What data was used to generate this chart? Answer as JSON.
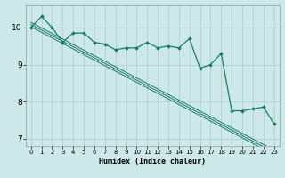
{
  "title": "",
  "xlabel": "Humidex (Indice chaleur)",
  "bg_color": "#cce8e8",
  "grid_color": "#aacccc",
  "line_color": "#1a7a6e",
  "x_data": [
    0,
    1,
    2,
    3,
    4,
    5,
    6,
    7,
    8,
    9,
    10,
    11,
    12,
    13,
    14,
    15,
    16,
    17,
    18,
    19,
    20,
    21,
    22,
    23
  ],
  "y_main": [
    10.0,
    10.3,
    10.0,
    9.6,
    9.85,
    9.85,
    9.6,
    9.55,
    9.4,
    9.45,
    9.45,
    9.6,
    9.45,
    9.5,
    9.45,
    9.7,
    8.9,
    9.0,
    9.3,
    7.75,
    7.75,
    7.8,
    7.85,
    7.4
  ],
  "y_trend1": [
    10.02,
    9.87,
    9.72,
    9.57,
    9.42,
    9.27,
    9.12,
    8.97,
    8.82,
    8.67,
    8.52,
    8.37,
    8.22,
    8.07,
    7.92,
    7.77,
    7.62,
    7.47,
    7.32,
    7.17,
    7.02,
    6.87,
    6.72,
    6.57
  ],
  "y_trend2": [
    10.08,
    9.93,
    9.78,
    9.63,
    9.48,
    9.33,
    9.18,
    9.03,
    8.88,
    8.73,
    8.58,
    8.43,
    8.28,
    8.13,
    7.98,
    7.83,
    7.68,
    7.53,
    7.38,
    7.23,
    7.08,
    6.93,
    6.78,
    6.63
  ],
  "y_trend3": [
    10.14,
    9.99,
    9.84,
    9.69,
    9.54,
    9.39,
    9.24,
    9.09,
    8.94,
    8.79,
    8.64,
    8.49,
    8.34,
    8.19,
    8.04,
    7.89,
    7.74,
    7.59,
    7.44,
    7.29,
    7.14,
    6.99,
    6.84,
    6.69
  ],
  "ylim": [
    6.8,
    10.6
  ],
  "xlim": [
    -0.5,
    23.5
  ],
  "yticks": [
    7,
    8,
    9,
    10
  ],
  "xticks": [
    0,
    1,
    2,
    3,
    4,
    5,
    6,
    7,
    8,
    9,
    10,
    11,
    12,
    13,
    14,
    15,
    16,
    17,
    18,
    19,
    20,
    21,
    22,
    23
  ],
  "xlabel_fontsize": 6.0,
  "ytick_fontsize": 6.5,
  "xtick_fontsize": 5.0
}
